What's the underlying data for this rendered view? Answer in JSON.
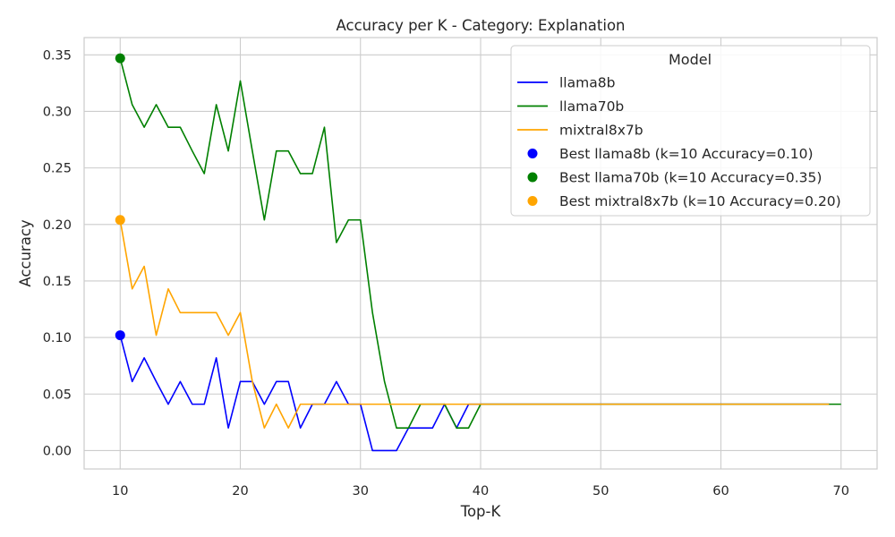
{
  "chart_data": {
    "type": "line",
    "title": "Accuracy per K - Category: Explanation",
    "xlabel": "Top-K",
    "ylabel": "Accuracy",
    "xlim": [
      7,
      73
    ],
    "ylim": [
      -0.0163,
      0.3653
    ],
    "x_ticks": [
      10,
      20,
      30,
      40,
      50,
      60,
      70
    ],
    "y_ticks": [
      0.0,
      0.05,
      0.1,
      0.15,
      0.2,
      0.25,
      0.3,
      0.35
    ],
    "grid": true,
    "legend": {
      "title": "Model",
      "placement": "top-right"
    },
    "series": [
      {
        "name": "llama8b",
        "color": "#0000ff",
        "x": [
          10,
          11,
          12,
          13,
          14,
          15,
          16,
          17,
          18,
          19,
          20,
          21,
          22,
          23,
          24,
          25,
          26,
          27,
          28,
          29,
          30,
          31,
          32,
          33,
          34,
          35,
          36,
          37,
          38,
          39,
          40,
          41,
          42,
          43,
          44,
          45,
          46,
          47,
          48,
          49,
          50,
          51,
          52,
          53,
          54,
          55,
          56,
          57,
          58,
          59,
          60,
          61,
          62,
          63,
          64,
          65,
          66,
          67,
          68,
          69
        ],
        "values": [
          0.102,
          0.061,
          0.082,
          0.061,
          0.041,
          0.061,
          0.041,
          0.041,
          0.082,
          0.02,
          0.061,
          0.061,
          0.041,
          0.061,
          0.061,
          0.02,
          0.041,
          0.041,
          0.061,
          0.041,
          0.041,
          0.0,
          0.0,
          0.0,
          0.02,
          0.02,
          0.02,
          0.041,
          0.02,
          0.041,
          0.041,
          0.041,
          0.041,
          0.041,
          0.041,
          0.041,
          0.041,
          0.041,
          0.041,
          0.041,
          0.041,
          0.041,
          0.041,
          0.041,
          0.041,
          0.041,
          0.041,
          0.041,
          0.041,
          0.041,
          0.041,
          0.041,
          0.041,
          0.041,
          0.041,
          0.041,
          0.041,
          0.041,
          0.041,
          0.041
        ]
      },
      {
        "name": "llama70b",
        "color": "#008000",
        "x": [
          10,
          11,
          12,
          13,
          14,
          15,
          16,
          17,
          18,
          19,
          20,
          21,
          22,
          23,
          24,
          25,
          26,
          27,
          28,
          29,
          30,
          31,
          32,
          33,
          34,
          35,
          36,
          37,
          38,
          39,
          40,
          41,
          42,
          43,
          44,
          45,
          46,
          47,
          48,
          49,
          50,
          51,
          52,
          53,
          54,
          55,
          56,
          57,
          58,
          59,
          60,
          61,
          62,
          63,
          64,
          65,
          66,
          67,
          68,
          69,
          70
        ],
        "values": [
          0.347,
          0.306,
          0.286,
          0.306,
          0.286,
          0.286,
          0.265,
          0.245,
          0.306,
          0.265,
          0.327,
          0.265,
          0.204,
          0.265,
          0.265,
          0.245,
          0.245,
          0.286,
          0.184,
          0.204,
          0.204,
          0.122,
          0.061,
          0.02,
          0.02,
          0.041,
          0.041,
          0.041,
          0.02,
          0.02,
          0.041,
          0.041,
          0.041,
          0.041,
          0.041,
          0.041,
          0.041,
          0.041,
          0.041,
          0.041,
          0.041,
          0.041,
          0.041,
          0.041,
          0.041,
          0.041,
          0.041,
          0.041,
          0.041,
          0.041,
          0.041,
          0.041,
          0.041,
          0.041,
          0.041,
          0.041,
          0.041,
          0.041,
          0.041,
          0.041,
          0.041
        ]
      },
      {
        "name": "mixtral8x7b",
        "color": "#ffa500",
        "x": [
          10,
          11,
          12,
          13,
          14,
          15,
          16,
          17,
          18,
          19,
          20,
          21,
          22,
          23,
          24,
          25,
          26,
          27,
          28,
          29,
          30,
          31,
          32,
          33,
          34,
          35,
          36,
          37,
          38,
          39,
          40,
          41,
          42,
          43,
          44,
          45,
          46,
          47,
          48,
          49,
          50,
          51,
          52,
          53,
          54,
          55,
          56,
          57,
          58,
          59,
          60,
          61,
          62,
          63,
          64,
          65,
          66,
          67,
          68,
          69
        ],
        "values": [
          0.204,
          0.143,
          0.163,
          0.102,
          0.143,
          0.122,
          0.122,
          0.122,
          0.122,
          0.102,
          0.122,
          0.061,
          0.02,
          0.041,
          0.02,
          0.041,
          0.041,
          0.041,
          0.041,
          0.041,
          0.041,
          0.041,
          0.041,
          0.041,
          0.041,
          0.041,
          0.041,
          0.041,
          0.041,
          0.041,
          0.041,
          0.041,
          0.041,
          0.041,
          0.041,
          0.041,
          0.041,
          0.041,
          0.041,
          0.041,
          0.041,
          0.041,
          0.041,
          0.041,
          0.041,
          0.041,
          0.041,
          0.041,
          0.041,
          0.041,
          0.041,
          0.041,
          0.041,
          0.041,
          0.041,
          0.041,
          0.041,
          0.041,
          0.041,
          0.041
        ]
      }
    ],
    "best_points": [
      {
        "name": "Best llama8b (k=10 Accuracy=0.10)",
        "color": "#0000ff",
        "x": 10,
        "y": 0.102
      },
      {
        "name": "Best llama70b (k=10 Accuracy=0.35)",
        "color": "#008000",
        "x": 10,
        "y": 0.347
      },
      {
        "name": "Best mixtral8x7b (k=10 Accuracy=0.20)",
        "color": "#ffa500",
        "x": 10,
        "y": 0.204
      }
    ]
  }
}
